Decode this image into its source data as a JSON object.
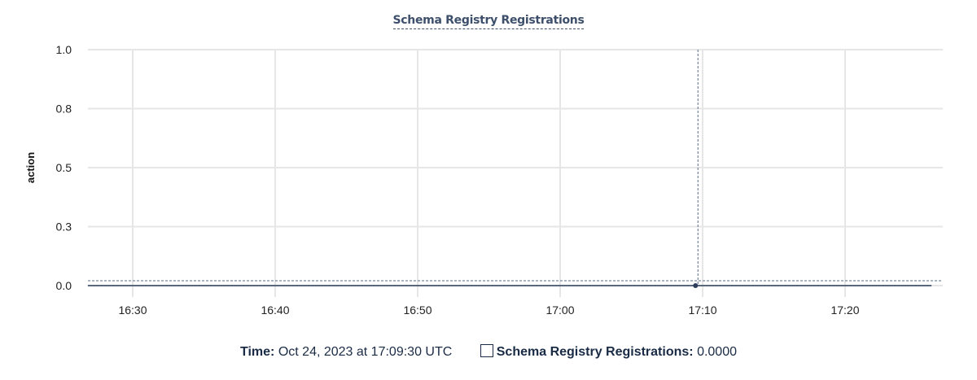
{
  "chart_data": {
    "type": "line",
    "title": "Schema Registry Registrations",
    "xlabel": "",
    "ylabel": "action",
    "x_range": [
      "16:26:51",
      "17:26:04"
    ],
    "x_ticks": [
      "16:30",
      "16:40",
      "16:50",
      "17:00",
      "17:10",
      "17:20"
    ],
    "y_ticks": [
      {
        "value": 0,
        "label": "0.0"
      },
      {
        "value": 0.25,
        "label": "0.3"
      },
      {
        "value": 0.5,
        "label": "0.5"
      },
      {
        "value": 0.75,
        "label": "0.8"
      },
      {
        "value": 1,
        "label": "1.0"
      }
    ],
    "ylim": [
      0,
      1
    ],
    "grid": true,
    "series": [
      {
        "name": "Schema Registry Registrations",
        "color": "#2c3e5c",
        "x": [
          "16:26:51",
          "17:09:30",
          "17:26:04"
        ],
        "values": [
          0,
          0,
          0
        ]
      }
    ],
    "hover": {
      "x": "17:09:30",
      "value": 0
    }
  },
  "legend": {
    "time_label": "Time:",
    "time_value": "Oct 24, 2023 at 17:09:30 UTC",
    "series_label": "Schema Registry Registrations:",
    "series_value": "0.0000"
  }
}
